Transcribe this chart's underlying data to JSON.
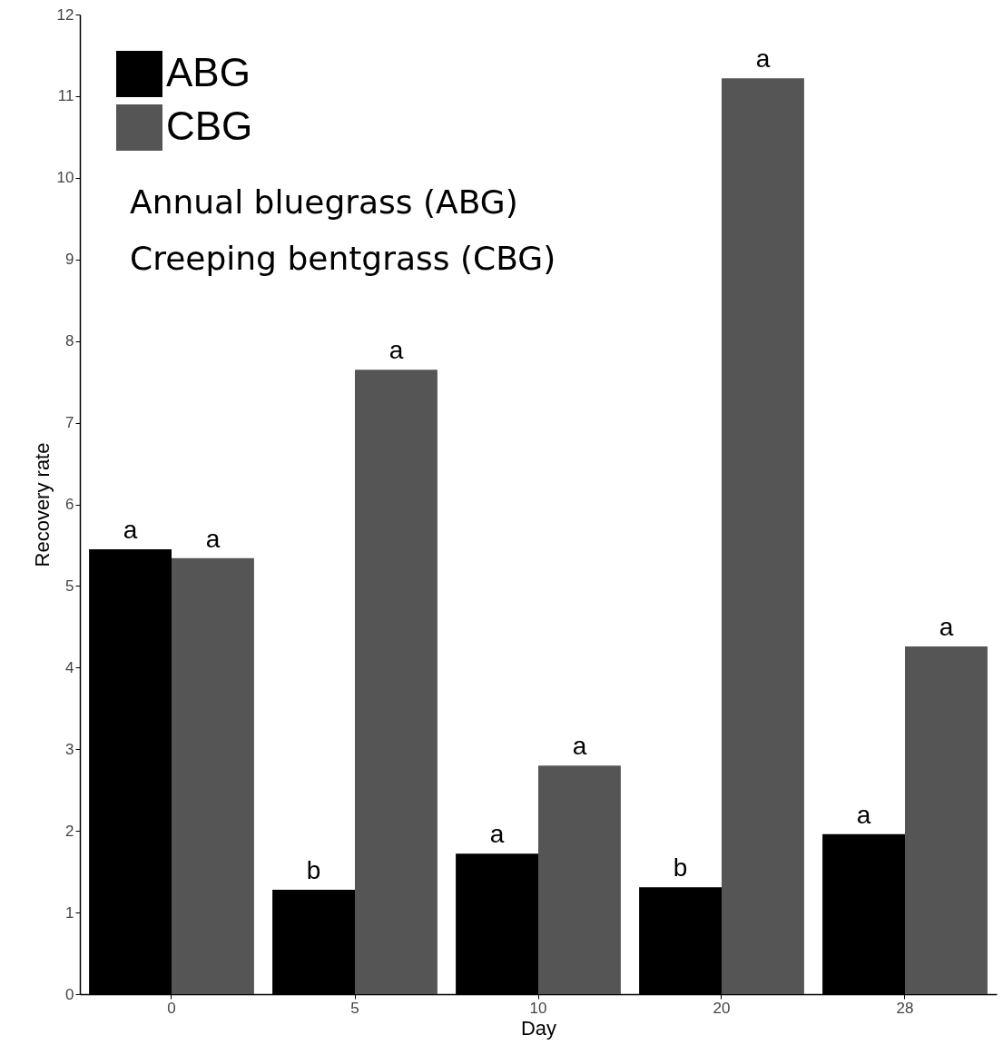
{
  "chart_data": {
    "type": "bar",
    "xlabel": "Day",
    "ylabel": "Recovery rate",
    "categories": [
      "0",
      "5",
      "10",
      "20",
      "28"
    ],
    "series": [
      {
        "name": "ABG",
        "color": "#000000",
        "values": [
          5.45,
          1.28,
          1.72,
          1.31,
          1.96
        ],
        "value_labels": [
          "a",
          "b",
          "a",
          "b",
          "a"
        ]
      },
      {
        "name": "CBG",
        "color": "#555555",
        "values": [
          5.34,
          7.65,
          2.8,
          11.22,
          4.26
        ],
        "value_labels": [
          "a",
          "a",
          "a",
          "a",
          "a"
        ]
      }
    ],
    "ylim": [
      0,
      12
    ],
    "yticks": [
      0,
      1,
      2,
      3,
      4,
      5,
      6,
      7,
      8,
      9,
      10,
      11,
      12
    ],
    "grid": false,
    "legend": "top left",
    "annotations": [
      "Annual bluegrass (ABG)",
      "Creeping bentgrass (CBG)"
    ]
  }
}
